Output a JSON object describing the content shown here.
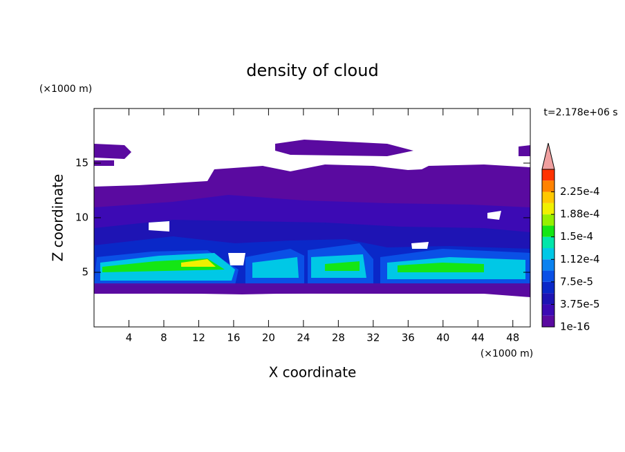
{
  "chart_data": {
    "type": "contour",
    "title": "density of cloud",
    "x_label": "X coordinate",
    "y_label": "Z coordinate",
    "x_unit": "(×1000 m)",
    "y_unit": "(×1000 m)",
    "time_label": "t=2.178e+06 s",
    "xlim": [
      0,
      50
    ],
    "ylim": [
      0,
      20
    ],
    "xticks": [
      4,
      8,
      12,
      16,
      20,
      24,
      28,
      32,
      36,
      40,
      44,
      48
    ],
    "yticks": [
      5,
      10,
      15
    ],
    "colorbar": {
      "clim": [
        1e-16,
        0.0002625
      ],
      "colors": [
        "#5a0aa0",
        "#3c0ab4",
        "#1e14b4",
        "#0a28c8",
        "#0a50e6",
        "#0a82f0",
        "#00c8e6",
        "#00e6aa",
        "#14e614",
        "#96f000",
        "#f0f000",
        "#ffc800",
        "#ff8200",
        "#ff3200"
      ],
      "extend_color": "#f0a0a0",
      "ticks": [
        {
          "value": 1e-16,
          "label": "1e-16"
        },
        {
          "value": 3.75e-05,
          "label": "3.75e-5"
        },
        {
          "value": 7.5e-05,
          "label": "7.5e-5"
        },
        {
          "value": 0.0001125,
          "label": "1.12e-4"
        },
        {
          "value": 0.00015,
          "label": "1.5e-4"
        },
        {
          "value": 0.0001875,
          "label": "1.88e-4"
        },
        {
          "value": 0.000225,
          "label": "2.25e-4"
        }
      ]
    }
  }
}
